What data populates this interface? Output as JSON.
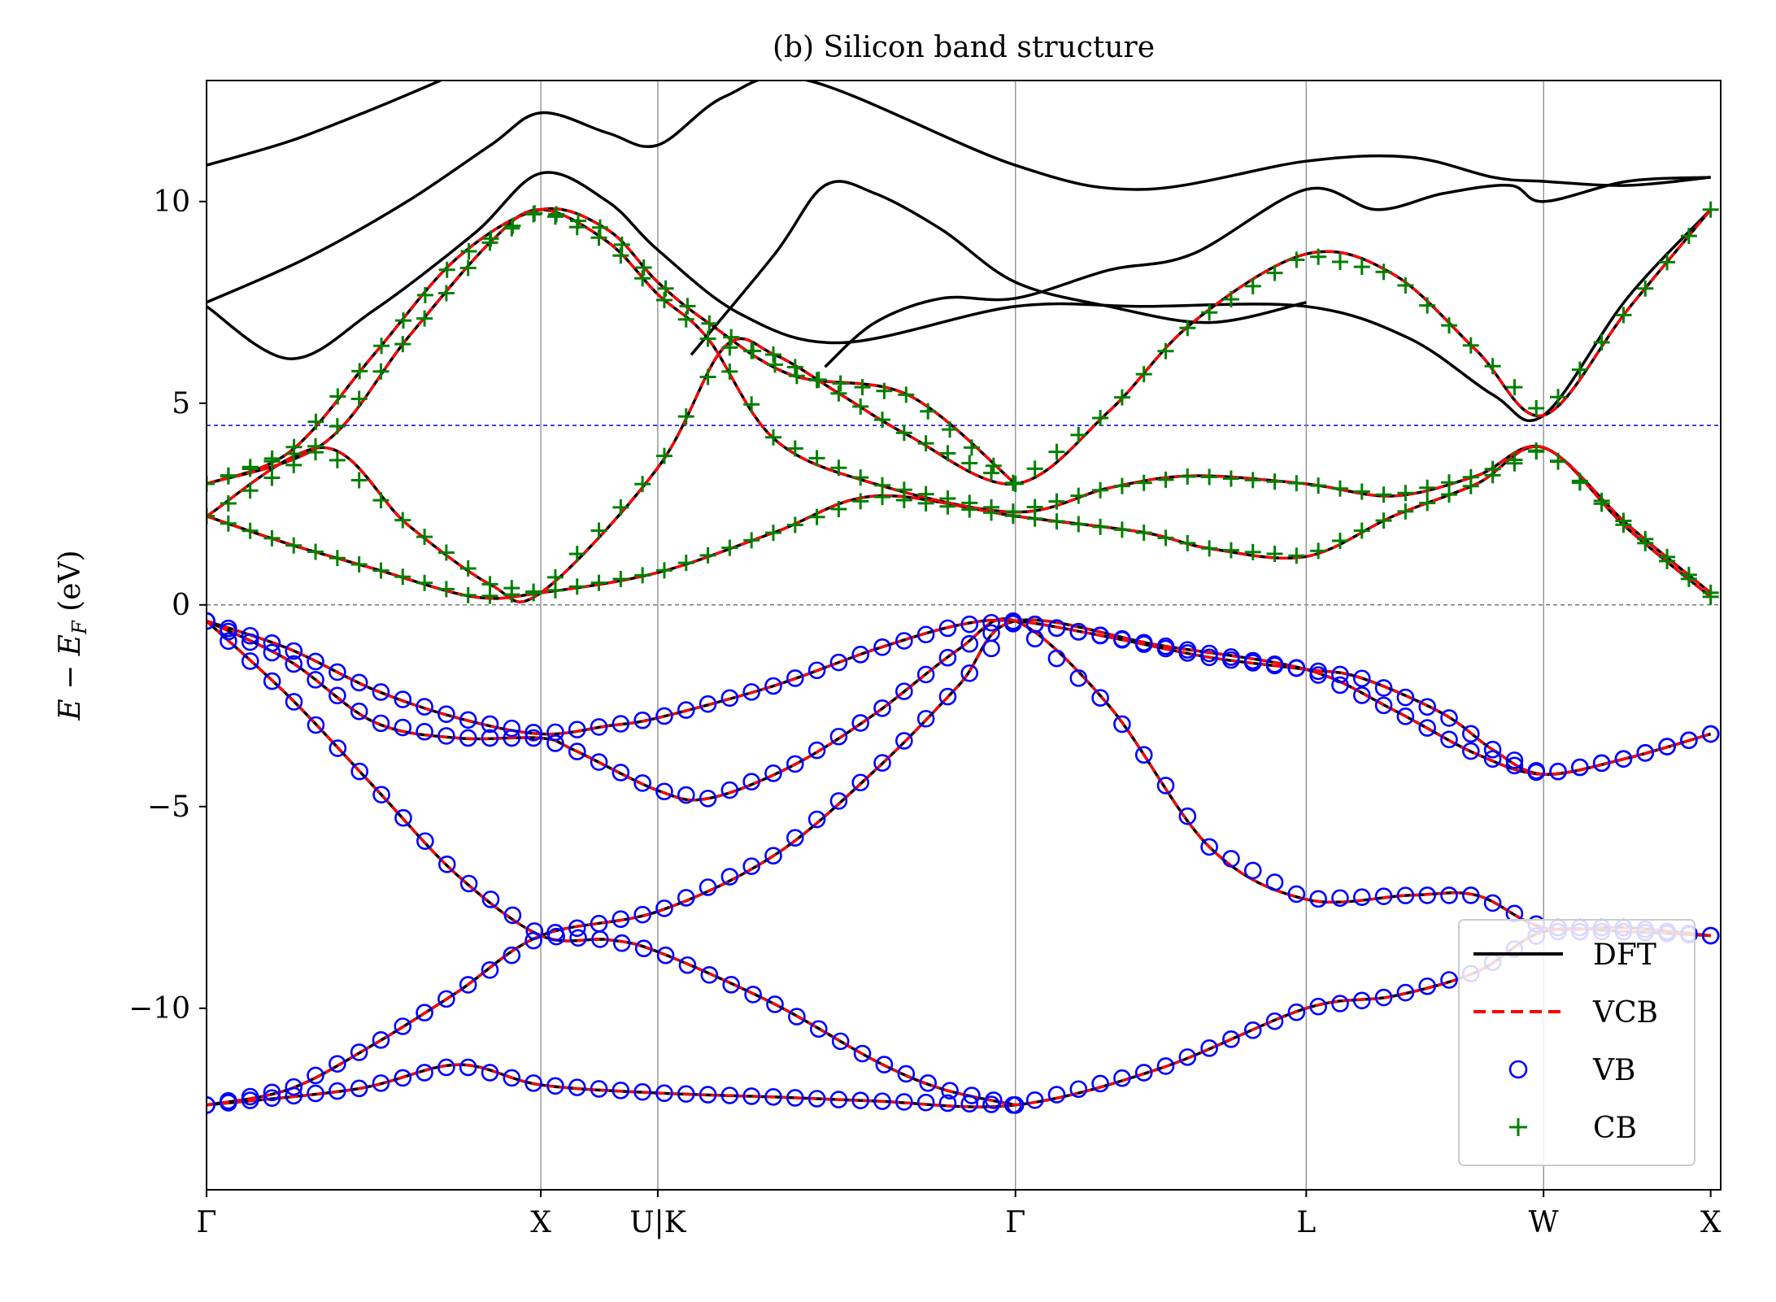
{
  "chart_data": {
    "type": "line",
    "title": "(b) Silicon band structure",
    "ylabel": "E − E_F (eV)",
    "ylabel_parts": {
      "e": "E",
      "minus": " − ",
      "ef": "E",
      "ef_sub": "F",
      "unit": " (eV)"
    },
    "ylim": [
      -14.5,
      13.0
    ],
    "yticks": [
      {
        "value": 10,
        "label": "10"
      },
      {
        "value": 5,
        "label": "5"
      },
      {
        "value": 0,
        "label": "0"
      },
      {
        "value": -5,
        "label": "−5"
      },
      {
        "value": -10,
        "label": "−10"
      }
    ],
    "xlim": [
      0,
      4.53
    ],
    "kpoints": [
      {
        "label": "Γ",
        "x": 0.0
      },
      {
        "label": "X",
        "x": 1.0
      },
      {
        "label": "U|K",
        "x": 1.35
      },
      {
        "label": "Γ",
        "x": 2.42
      },
      {
        "label": "L",
        "x": 3.29
      },
      {
        "label": "W",
        "x": 4.0
      },
      {
        "label": "X",
        "x": 4.5
      }
    ],
    "reference_lines": [
      {
        "name": "fermi-level",
        "y": 0.0,
        "color": "#777777"
      },
      {
        "name": "energy-window",
        "y": 4.45,
        "color": "#0000ff"
      }
    ],
    "legend": {
      "position": "lower-right",
      "entries": [
        {
          "label": "DFT",
          "style": "solid",
          "color": "#000000"
        },
        {
          "label": "VCB",
          "style": "dashed",
          "color": "#ff0000"
        },
        {
          "label": "VB",
          "style": "circle",
          "color": "#0000ff"
        },
        {
          "label": "CB",
          "style": "plus",
          "color": "#008000"
        }
      ]
    },
    "series": [
      {
        "role": "valence",
        "points": [
          [
            0,
            -12.4
          ],
          [
            0.25,
            -12.0
          ],
          [
            0.5,
            -10.9
          ],
          [
            0.75,
            -9.6
          ],
          [
            1.0,
            -8.2
          ],
          [
            1.35,
            -7.6
          ],
          [
            1.7,
            -6.2
          ],
          [
            2.0,
            -4.1
          ],
          [
            2.25,
            -2.0
          ],
          [
            2.42,
            -0.4
          ],
          [
            2.85,
            -1.0
          ],
          [
            3.29,
            -1.6
          ],
          [
            3.55,
            -2.6
          ],
          [
            3.8,
            -3.7
          ],
          [
            4.0,
            -4.2
          ],
          [
            4.25,
            -3.8
          ],
          [
            4.5,
            -3.2
          ]
        ]
      },
      {
        "role": "valence",
        "points": [
          [
            0,
            -12.4
          ],
          [
            0.45,
            -12.0
          ],
          [
            0.75,
            -11.4
          ],
          [
            1.0,
            -11.9
          ],
          [
            1.35,
            -12.1
          ],
          [
            1.7,
            -12.2
          ],
          [
            2.0,
            -12.3
          ],
          [
            2.42,
            -12.4
          ],
          [
            2.85,
            -11.5
          ],
          [
            3.29,
            -10.0
          ],
          [
            3.55,
            -9.7
          ],
          [
            3.8,
            -9.1
          ],
          [
            4.0,
            -8.1
          ],
          [
            4.25,
            -8.1
          ],
          [
            4.5,
            -8.2
          ]
        ]
      },
      {
        "role": "valence",
        "points": [
          [
            0,
            -0.4
          ],
          [
            0.25,
            -1.4
          ],
          [
            0.5,
            -2.9
          ],
          [
            0.75,
            -3.3
          ],
          [
            1.0,
            -3.3
          ],
          [
            1.1,
            -3.6
          ],
          [
            1.35,
            -4.6
          ],
          [
            1.5,
            -4.8
          ],
          [
            1.75,
            -4.0
          ],
          [
            2.0,
            -2.7
          ],
          [
            2.25,
            -1.1
          ],
          [
            2.42,
            -0.4
          ],
          [
            2.7,
            -2.5
          ],
          [
            3.0,
            -6.0
          ],
          [
            3.29,
            -7.3
          ],
          [
            3.6,
            -7.2
          ],
          [
            3.8,
            -7.2
          ],
          [
            4.0,
            -8.0
          ],
          [
            4.25,
            -8.0
          ],
          [
            4.5,
            -8.2
          ]
        ]
      },
      {
        "role": "valence",
        "points": [
          [
            0,
            -0.4
          ],
          [
            0.25,
            -2.3
          ],
          [
            0.5,
            -4.5
          ],
          [
            0.75,
            -6.7
          ],
          [
            1.0,
            -8.2
          ],
          [
            1.2,
            -8.3
          ],
          [
            1.35,
            -8.6
          ],
          [
            1.7,
            -9.9
          ],
          [
            2.0,
            -11.3
          ],
          [
            2.2,
            -12.0
          ],
          [
            2.42,
            -12.4
          ]
        ]
      },
      {
        "role": "valence",
        "points": [
          [
            0,
            -0.4
          ],
          [
            0.25,
            -1.1
          ],
          [
            0.5,
            -2.1
          ],
          [
            0.75,
            -2.8
          ],
          [
            1.0,
            -3.2
          ],
          [
            1.2,
            -3.0
          ],
          [
            1.35,
            -2.8
          ],
          [
            1.7,
            -2.0
          ],
          [
            2.0,
            -1.1
          ],
          [
            2.25,
            -0.5
          ],
          [
            2.42,
            -0.4
          ],
          [
            2.7,
            -0.8
          ],
          [
            3.0,
            -1.3
          ],
          [
            3.29,
            -1.6
          ],
          [
            3.45,
            -1.8
          ],
          [
            3.7,
            -2.7
          ],
          [
            3.85,
            -3.6
          ],
          [
            4.0,
            -4.2
          ],
          [
            4.25,
            -3.8
          ],
          [
            4.5,
            -3.2
          ]
        ]
      },
      {
        "role": "conduction",
        "points": [
          [
            0,
            2.2
          ],
          [
            0.25,
            1.5
          ],
          [
            0.5,
            0.9
          ],
          [
            0.8,
            0.2
          ],
          [
            1.0,
            0.3
          ],
          [
            1.35,
            0.8
          ],
          [
            1.7,
            1.8
          ],
          [
            2.0,
            2.7
          ],
          [
            2.42,
            2.2
          ],
          [
            2.8,
            1.8
          ],
          [
            3.0,
            1.4
          ],
          [
            3.29,
            1.2
          ],
          [
            3.55,
            2.2
          ],
          [
            3.8,
            3.0
          ],
          [
            4.0,
            3.9
          ],
          [
            4.25,
            1.9
          ],
          [
            4.5,
            0.2
          ]
        ]
      },
      {
        "role": "conduction",
        "points": [
          [
            0,
            2.2
          ],
          [
            0.35,
            3.9
          ],
          [
            0.6,
            2.0
          ],
          [
            0.85,
            0.5
          ],
          [
            1.0,
            0.3
          ],
          [
            1.35,
            3.4
          ],
          [
            1.55,
            6.4
          ],
          [
            1.7,
            6.2
          ],
          [
            1.9,
            5.2
          ],
          [
            2.1,
            4.2
          ],
          [
            2.42,
            3.0
          ],
          [
            2.7,
            4.8
          ],
          [
            2.95,
            7.0
          ],
          [
            3.29,
            8.7
          ],
          [
            3.55,
            8.2
          ],
          [
            3.8,
            6.3
          ],
          [
            4.0,
            4.7
          ],
          [
            4.25,
            7.3
          ],
          [
            4.5,
            9.8
          ]
        ]
      },
      {
        "role": "conduction",
        "points": [
          [
            0,
            3.0
          ],
          [
            0.35,
            4.0
          ],
          [
            0.6,
            6.6
          ],
          [
            0.85,
            9.0
          ],
          [
            1.0,
            9.8
          ],
          [
            1.2,
            9.0
          ],
          [
            1.35,
            7.7
          ],
          [
            1.5,
            6.6
          ],
          [
            1.7,
            4.1
          ],
          [
            2.0,
            3.0
          ],
          [
            2.42,
            2.3
          ],
          [
            2.7,
            2.9
          ],
          [
            2.95,
            3.2
          ],
          [
            3.29,
            3.0
          ],
          [
            3.55,
            2.7
          ],
          [
            3.8,
            3.2
          ],
          [
            4.0,
            3.9
          ],
          [
            4.25,
            2.0
          ],
          [
            4.5,
            0.3
          ]
        ]
      },
      {
        "role": "conduction",
        "points": [
          [
            0,
            3.0
          ],
          [
            0.25,
            3.8
          ],
          [
            0.5,
            6.2
          ],
          [
            0.75,
            8.6
          ],
          [
            1.0,
            9.8
          ],
          [
            1.2,
            9.3
          ],
          [
            1.35,
            8.0
          ],
          [
            1.5,
            7.0
          ],
          [
            1.75,
            5.7
          ],
          [
            2.1,
            5.2
          ],
          [
            2.42,
            3.0
          ]
        ]
      },
      {
        "role": "higher",
        "points": [
          [
            0,
            7.4
          ],
          [
            0.25,
            6.1
          ],
          [
            0.5,
            7.3
          ],
          [
            0.8,
            9.2
          ],
          [
            1.0,
            10.7
          ],
          [
            1.2,
            10.0
          ],
          [
            1.35,
            8.8
          ],
          [
            1.6,
            7.2
          ],
          [
            1.9,
            6.5
          ],
          [
            2.42,
            7.4
          ],
          [
            2.8,
            7.4
          ],
          [
            3.29,
            7.4
          ],
          [
            3.6,
            6.6
          ],
          [
            3.85,
            5.2
          ],
          [
            4.0,
            4.7
          ],
          [
            4.25,
            7.6
          ],
          [
            4.5,
            9.8
          ]
        ]
      },
      {
        "role": "higher",
        "points": [
          [
            0,
            7.5
          ],
          [
            0.3,
            8.6
          ],
          [
            0.6,
            10.0
          ],
          [
            0.85,
            11.4
          ],
          [
            1.0,
            12.2
          ],
          [
            1.2,
            11.7
          ],
          [
            1.35,
            11.4
          ],
          [
            1.55,
            12.6
          ],
          [
            1.8,
            13.0
          ],
          [
            2.42,
            10.9
          ],
          [
            2.8,
            10.3
          ],
          [
            3.29,
            11.0
          ],
          [
            3.6,
            11.1
          ],
          [
            3.85,
            10.6
          ],
          [
            4.0,
            10.5
          ],
          [
            4.25,
            10.4
          ],
          [
            4.5,
            10.6
          ]
        ]
      },
      {
        "role": "higher",
        "points": [
          [
            0,
            10.9
          ],
          [
            0.25,
            11.5
          ],
          [
            0.5,
            12.3
          ],
          [
            0.7,
            13.0
          ]
        ]
      },
      {
        "role": "higher",
        "points": [
          [
            1.85,
            5.9
          ],
          [
            2.0,
            7.0
          ],
          [
            2.2,
            7.6
          ],
          [
            2.42,
            7.6
          ],
          [
            2.7,
            8.3
          ],
          [
            2.95,
            8.7
          ],
          [
            3.29,
            10.3
          ],
          [
            3.5,
            9.8
          ],
          [
            3.7,
            10.2
          ],
          [
            3.9,
            10.4
          ],
          [
            4.0,
            10.0
          ],
          [
            4.25,
            10.5
          ],
          [
            4.5,
            10.6
          ]
        ]
      },
      {
        "role": "higher",
        "points": [
          [
            1.45,
            6.2
          ],
          [
            1.7,
            8.7
          ],
          [
            1.85,
            10.4
          ],
          [
            2.0,
            10.2
          ],
          [
            2.2,
            9.3
          ],
          [
            2.42,
            8.0
          ],
          [
            2.7,
            7.4
          ],
          [
            3.0,
            7.0
          ],
          [
            3.29,
            7.5
          ]
        ]
      }
    ]
  }
}
